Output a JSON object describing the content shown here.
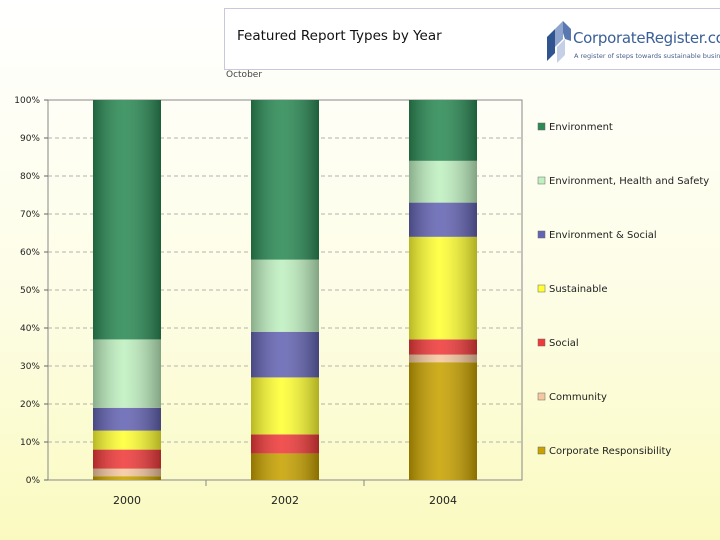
{
  "header": {
    "title": "Featured Report Types by Year",
    "logo_text": "CorporateRegister.com",
    "logo_tagline": "A register of steps towards sustainable business"
  },
  "subtitle": "October",
  "chart_data": {
    "type": "bar",
    "stacked": true,
    "percent": true,
    "title": "Featured Report Types by Year",
    "xlabel": "",
    "ylabel": "",
    "ylim": [
      0,
      100
    ],
    "yticks": [
      "0%",
      "10%",
      "20%",
      "30%",
      "40%",
      "50%",
      "60%",
      "70%",
      "80%",
      "90%",
      "100%"
    ],
    "categories": [
      "2000",
      "2002",
      "2004"
    ],
    "grid": true,
    "legend_position": "right",
    "series": [
      {
        "name": "Corporate Responsibility",
        "color": "#c8a200",
        "values": [
          1,
          7,
          31
        ]
      },
      {
        "name": "Community",
        "color": "#f5c8a0",
        "values": [
          2,
          0,
          2
        ]
      },
      {
        "name": "Social",
        "color": "#f03a3a",
        "values": [
          5,
          5,
          4
        ]
      },
      {
        "name": "Sustainable",
        "color": "#ffff33",
        "values": [
          5,
          15,
          27
        ]
      },
      {
        "name": "Environment & Social",
        "color": "#6464b4",
        "values": [
          6,
          12,
          9
        ]
      },
      {
        "name": "Environment, Health and Safety",
        "color": "#bff0c0",
        "values": [
          18,
          19,
          11
        ]
      },
      {
        "name": "Environment",
        "color": "#2b8a55",
        "values": [
          63,
          42,
          16
        ]
      }
    ]
  }
}
